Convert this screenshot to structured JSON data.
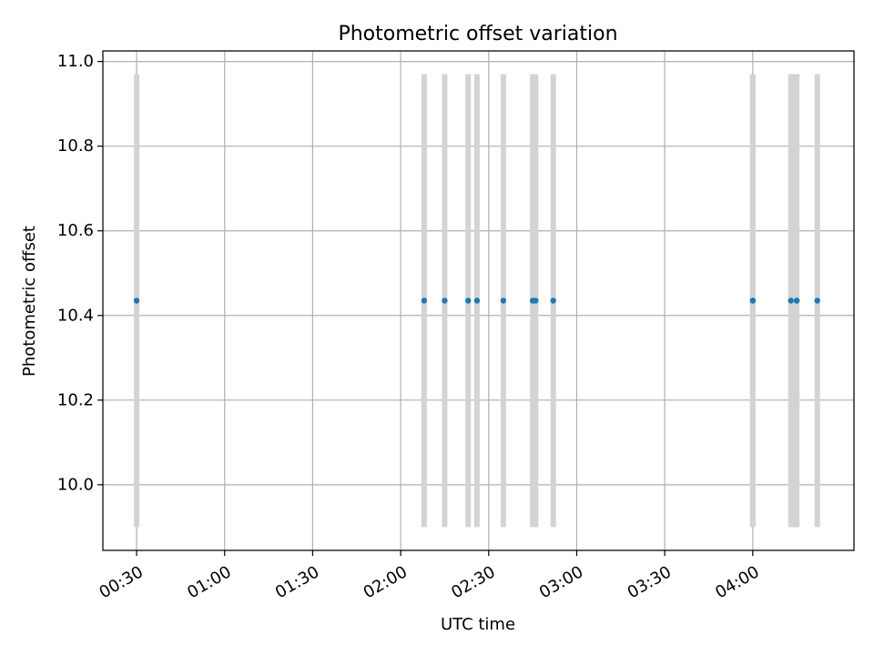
{
  "chart_data": {
    "type": "scatter",
    "title": "Photometric offset variation",
    "xlabel": "UTC time",
    "ylabel": "Photometric offset",
    "xlim": [
      "00:18:30",
      "04:34:30"
    ],
    "ylim": [
      9.845,
      11.025
    ],
    "x_ticks": [
      "00:30",
      "01:00",
      "01:30",
      "02:00",
      "02:30",
      "03:00",
      "03:30",
      "04:00"
    ],
    "y_ticks": [
      "10.0",
      "10.2",
      "10.4",
      "10.6",
      "10.8",
      "11.0"
    ],
    "grid": true,
    "series": [
      {
        "x": [
          "00:30",
          "02:08",
          "02:15",
          "02:23",
          "02:26",
          "02:35",
          "02:45",
          "02:46",
          "02:52",
          "04:00",
          "04:00",
          "04:13",
          "04:15",
          "04:15",
          "04:22"
        ],
        "y": [
          10.435,
          10.435,
          10.435,
          10.435,
          10.435,
          10.435,
          10.435,
          10.435,
          10.435,
          10.435,
          10.435,
          10.435,
          10.435,
          10.435,
          10.435
        ],
        "color": "#1f77b4"
      }
    ],
    "range_bars": {
      "x": [
        "00:30",
        "02:08",
        "02:15",
        "02:23",
        "02:26",
        "02:35",
        "02:45",
        "02:46",
        "02:52",
        "04:00",
        "04:00",
        "04:13",
        "04:14",
        "04:15",
        "04:22"
      ],
      "y_range": [
        9.9,
        10.97
      ],
      "color": "#d3d3d3"
    }
  }
}
